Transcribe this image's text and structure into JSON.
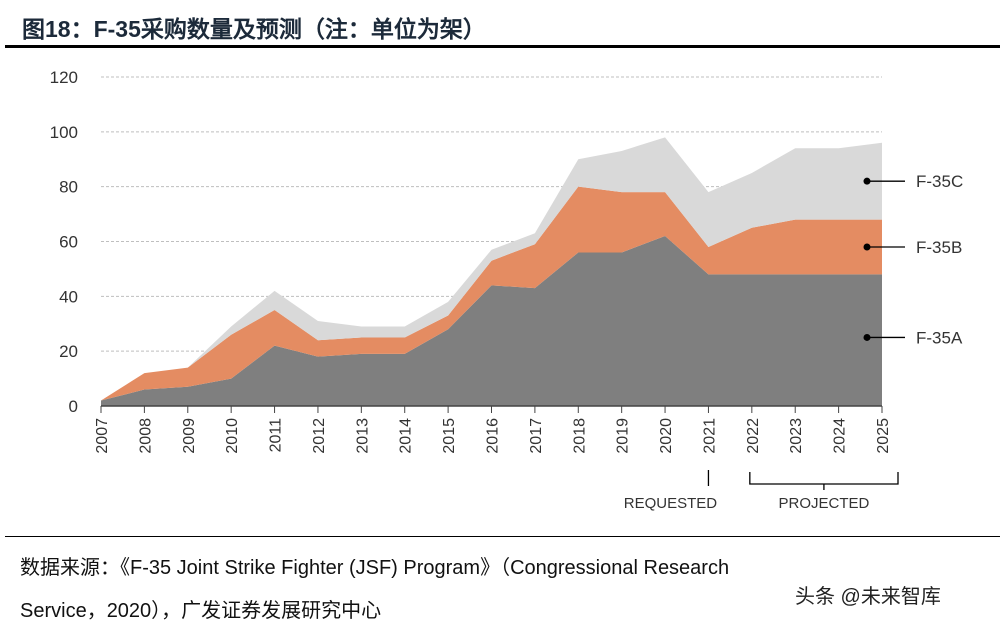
{
  "title": "图18：F-35采购数量及预测（注：单位为架）",
  "source_line1": "数据来源：《F-35 Joint Strike Fighter (JSF) Program》（Congressional Research",
  "source_line2": "Service，2020），广发证券发展研究中心",
  "watermark": "头条 @未来智库",
  "chart_data": {
    "type": "area",
    "stacked": true,
    "categories": [
      "2007",
      "2008",
      "2009",
      "2010",
      "2011",
      "2012",
      "2013",
      "2014",
      "2015",
      "2016",
      "2017",
      "2018",
      "2019",
      "2020",
      "2021",
      "2022",
      "2023",
      "2024",
      "2025"
    ],
    "series": [
      {
        "name": "F-35A",
        "color": "#7f7f7f",
        "values": [
          2,
          6,
          7,
          10,
          22,
          18,
          19,
          19,
          28,
          44,
          43,
          56,
          56,
          62,
          48,
          48,
          48,
          48,
          48
        ]
      },
      {
        "name": "F-35B",
        "color": "#e48c62",
        "values": [
          0,
          6,
          7,
          16,
          13,
          6,
          6,
          6,
          5,
          9,
          16,
          24,
          22,
          16,
          10,
          17,
          20,
          20,
          20
        ]
      },
      {
        "name": "F-35C",
        "color": "#d9d9d9",
        "values": [
          0,
          0,
          0,
          3,
          7,
          7,
          4,
          4,
          5,
          4,
          4,
          10,
          15,
          20,
          20,
          20,
          26,
          26,
          28
        ]
      }
    ],
    "yticks": [
      0,
      20,
      40,
      60,
      80,
      100,
      120
    ],
    "ylim": [
      0,
      120
    ],
    "grid": true,
    "annotations": [
      {
        "text": "REQUESTED",
        "years": [
          "2021"
        ]
      },
      {
        "text": "PROJECTED",
        "years": [
          "2022",
          "2025"
        ]
      }
    ]
  }
}
